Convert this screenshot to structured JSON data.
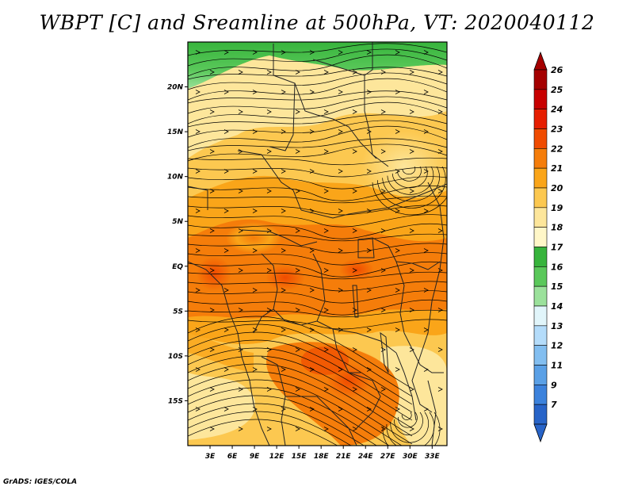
{
  "title": "WBPT [C] and Sreamline at 500hPa, VT: 2020040112",
  "credit": "GrADS: IGES/COLA",
  "map": {
    "lon_range": [
      0,
      35
    ],
    "lat_range": [
      -20,
      25
    ],
    "lon_ticks": [
      "3E",
      "6E",
      "9E",
      "12E",
      "15E",
      "18E",
      "21E",
      "24E",
      "27E",
      "30E",
      "33E"
    ],
    "lat_ticks": [
      "20N",
      "15N",
      "10N",
      "5N",
      "EQ",
      "5S",
      "10S",
      "15S"
    ]
  },
  "colorbar": {
    "labels": [
      "26",
      "25",
      "24",
      "23",
      "22",
      "21",
      "20",
      "19",
      "18",
      "17",
      "16",
      "15",
      "14",
      "13",
      "12",
      "11",
      "9",
      "7"
    ],
    "colors": [
      "#a50000",
      "#c80000",
      "#e61e00",
      "#f04b00",
      "#f57d0a",
      "#faa519",
      "#fcc850",
      "#fde69b",
      "#fff7c8",
      "#37b43c",
      "#5ac85a",
      "#9be19b",
      "#e1f5fa",
      "#b4dcfa",
      "#82bef0",
      "#5aa0e6",
      "#3c82dc",
      "#2864c8"
    ]
  }
}
